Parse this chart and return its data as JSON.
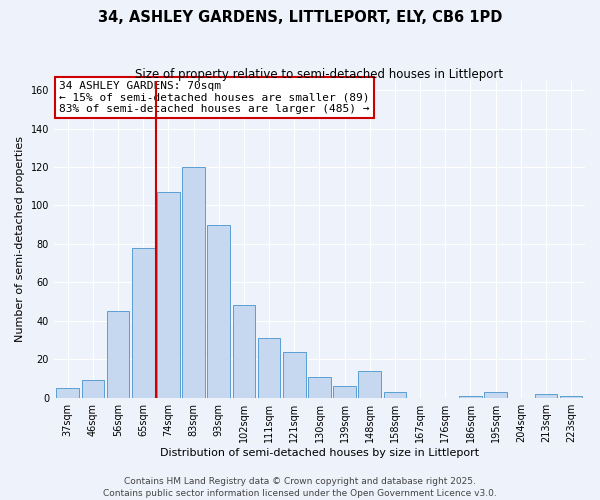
{
  "title": "34, ASHLEY GARDENS, LITTLEPORT, ELY, CB6 1PD",
  "subtitle": "Size of property relative to semi-detached houses in Littleport",
  "xlabel": "Distribution of semi-detached houses by size in Littleport",
  "ylabel": "Number of semi-detached properties",
  "categories": [
    "37sqm",
    "46sqm",
    "56sqm",
    "65sqm",
    "74sqm",
    "83sqm",
    "93sqm",
    "102sqm",
    "111sqm",
    "121sqm",
    "130sqm",
    "139sqm",
    "148sqm",
    "158sqm",
    "167sqm",
    "176sqm",
    "186sqm",
    "195sqm",
    "204sqm",
    "213sqm",
    "223sqm"
  ],
  "values": [
    5,
    9,
    45,
    78,
    107,
    120,
    90,
    48,
    31,
    24,
    11,
    6,
    14,
    3,
    0,
    0,
    1,
    3,
    0,
    2,
    1
  ],
  "bar_color": "#c5d8f0",
  "bar_edge_color": "#5a9fd4",
  "vline_x": 3.5,
  "vline_color": "#cc0000",
  "annotation_line1": "34 ASHLEY GARDENS: 70sqm",
  "annotation_line2": "← 15% of semi-detached houses are smaller (89)",
  "annotation_line3": "83% of semi-detached houses are larger (485) →",
  "annotation_box_color": "#ffffff",
  "annotation_box_edge_color": "#cc0000",
  "ylim": [
    0,
    165
  ],
  "yticks": [
    0,
    20,
    40,
    60,
    80,
    100,
    120,
    140,
    160
  ],
  "background_color": "#eef2fa",
  "grid_color": "#ffffff",
  "footer_line1": "Contains HM Land Registry data © Crown copyright and database right 2025.",
  "footer_line2": "Contains public sector information licensed under the Open Government Licence v3.0.",
  "title_fontsize": 10.5,
  "subtitle_fontsize": 8.5,
  "xlabel_fontsize": 8,
  "ylabel_fontsize": 8,
  "annotation_fontsize": 8,
  "footer_fontsize": 6.5,
  "tick_fontsize": 7
}
